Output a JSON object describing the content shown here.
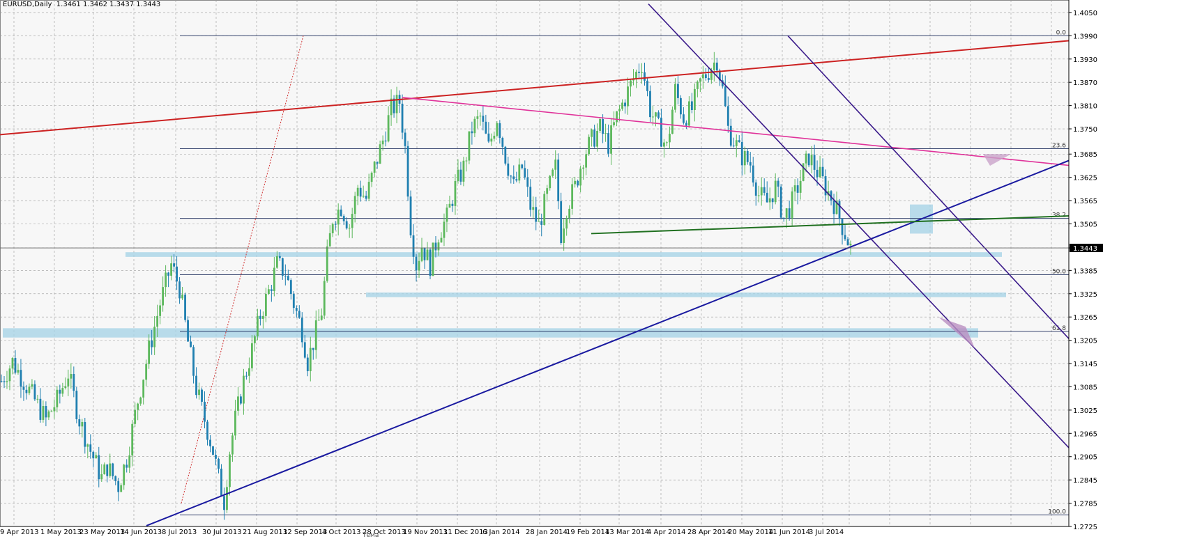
{
  "header": {
    "symbol": "EURUSD,Daily",
    "ohlc": "1.3461 1.3462 1.3437 1.3443",
    "current_price": "1.3443"
  },
  "bottom_tab": "Тема",
  "colors": {
    "bull": "#5cb85c",
    "bear": "#1f7fb0",
    "red_line": "#cc2222",
    "magenta_line": "#e0339a",
    "blue_line": "#1a1aa0",
    "purple_channel": "#3a1a8a",
    "green_line": "#207020",
    "zone": "#a7d3e6",
    "fib": "#1a2a5a",
    "red_dotted": "#d03030"
  },
  "chart_data": {
    "type": "candlestick",
    "symbol": "EURUSD",
    "timeframe": "Daily",
    "ylim": [
      1.2725,
      1.4075
    ],
    "y_ticks": [
      "1.4050",
      "1.3990",
      "1.3930",
      "1.3870",
      "1.3810",
      "1.3750",
      "1.3685",
      "1.3625",
      "1.3565",
      "1.3505",
      "1.3443",
      "1.3385",
      "1.3325",
      "1.3265",
      "1.3205",
      "1.3145",
      "1.3085",
      "1.3025",
      "1.2965",
      "1.2905",
      "1.2845",
      "1.2785",
      "1.2725"
    ],
    "x_ticks": [
      "9 Apr 2013",
      "1 May 2013",
      "23 May 2013",
      "14 Jun 2013",
      "8 Jul 2013",
      "30 Jul 2013",
      "21 Aug 2013",
      "12 Sep 2013",
      "4 Oct 2013",
      "28 Oct 2013",
      "19 Nov 2013",
      "11 Dec 2013",
      "6 Jan 2014",
      "28 Jan 2014",
      "19 Feb 2014",
      "13 Mar 2014",
      "4 Apr 2014",
      "28 Apr 2014",
      "20 May 2014",
      "11 Jun 2014",
      "3 Jul 2014"
    ],
    "close_path": [
      [
        0,
        1.31
      ],
      [
        4,
        1.315
      ],
      [
        8,
        1.31
      ],
      [
        12,
        1.305
      ],
      [
        16,
        1.3
      ],
      [
        20,
        1.305
      ],
      [
        24,
        1.312
      ],
      [
        28,
        1.3
      ],
      [
        32,
        1.292
      ],
      [
        36,
        1.285
      ],
      [
        38,
        1.288
      ],
      [
        42,
        1.283
      ],
      [
        45,
        1.29
      ],
      [
        49,
        1.305
      ],
      [
        53,
        1.318
      ],
      [
        57,
        1.33
      ],
      [
        61,
        1.34
      ],
      [
        64,
        1.334
      ],
      [
        67,
        1.32
      ],
      [
        70,
        1.308
      ],
      [
        73,
        1.3
      ],
      [
        76,
        1.292
      ],
      [
        78,
        1.285
      ],
      [
        80,
        1.279
      ],
      [
        82,
        1.292
      ],
      [
        84,
        1.3
      ],
      [
        87,
        1.31
      ],
      [
        90,
        1.318
      ],
      [
        93,
        1.327
      ],
      [
        96,
        1.333
      ],
      [
        99,
        1.34
      ],
      [
        102,
        1.338
      ],
      [
        105,
        1.33
      ],
      [
        108,
        1.323
      ],
      [
        110,
        1.315
      ],
      [
        112,
        1.32
      ],
      [
        115,
        1.328
      ],
      [
        117,
        1.342
      ],
      [
        119,
        1.352
      ],
      [
        122,
        1.355
      ],
      [
        125,
        1.35
      ],
      [
        128,
        1.36
      ],
      [
        131,
        1.357
      ],
      [
        134,
        1.365
      ],
      [
        137,
        1.372
      ],
      [
        140,
        1.38
      ],
      [
        143,
        1.382
      ],
      [
        145,
        1.37
      ],
      [
        147,
        1.35
      ],
      [
        149,
        1.34
      ],
      [
        151,
        1.345
      ],
      [
        154,
        1.34
      ],
      [
        157,
        1.348
      ],
      [
        160,
        1.352
      ],
      [
        163,
        1.36
      ],
      [
        166,
        1.365
      ],
      [
        169,
        1.375
      ],
      [
        172,
        1.378
      ],
      [
        175,
        1.37
      ],
      [
        178,
        1.378
      ],
      [
        181,
        1.368
      ],
      [
        184,
        1.36
      ],
      [
        187,
        1.365
      ],
      [
        190,
        1.355
      ],
      [
        193,
        1.35
      ],
      [
        196,
        1.358
      ],
      [
        199,
        1.365
      ],
      [
        201,
        1.348
      ],
      [
        203,
        1.355
      ],
      [
        206,
        1.36
      ],
      [
        209,
        1.368
      ],
      [
        212,
        1.372
      ],
      [
        215,
        1.375
      ],
      [
        218,
        1.371
      ],
      [
        221,
        1.378
      ],
      [
        224,
        1.383
      ],
      [
        227,
        1.388
      ],
      [
        230,
        1.392
      ],
      [
        233,
        1.38
      ],
      [
        236,
        1.375
      ],
      [
        239,
        1.37
      ],
      [
        242,
        1.385
      ],
      [
        245,
        1.378
      ],
      [
        248,
        1.38
      ],
      [
        251,
        1.387
      ],
      [
        254,
        1.39
      ],
      [
        257,
        1.393
      ],
      [
        259,
        1.385
      ],
      [
        261,
        1.375
      ],
      [
        263,
        1.372
      ],
      [
        266,
        1.368
      ],
      [
        269,
        1.366
      ],
      [
        272,
        1.358
      ],
      [
        275,
        1.356
      ],
      [
        278,
        1.36
      ],
      [
        281,
        1.352
      ],
      [
        284,
        1.356
      ],
      [
        287,
        1.362
      ],
      [
        290,
        1.368
      ],
      [
        293,
        1.364
      ],
      [
        296,
        1.36
      ],
      [
        299,
        1.356
      ],
      [
        302,
        1.35
      ],
      [
        305,
        1.3443
      ]
    ],
    "fibonacci_levels": [
      {
        "label": "0.0",
        "price": 1.399
      },
      {
        "label": "23.6",
        "price": 1.3699
      },
      {
        "label": "38.2",
        "price": 1.3519
      },
      {
        "label": "50.0",
        "price": 1.3374
      },
      {
        "label": "61.8",
        "price": 1.3228
      },
      {
        "label": "100.0",
        "price": 1.2755
      }
    ],
    "grid": true
  }
}
